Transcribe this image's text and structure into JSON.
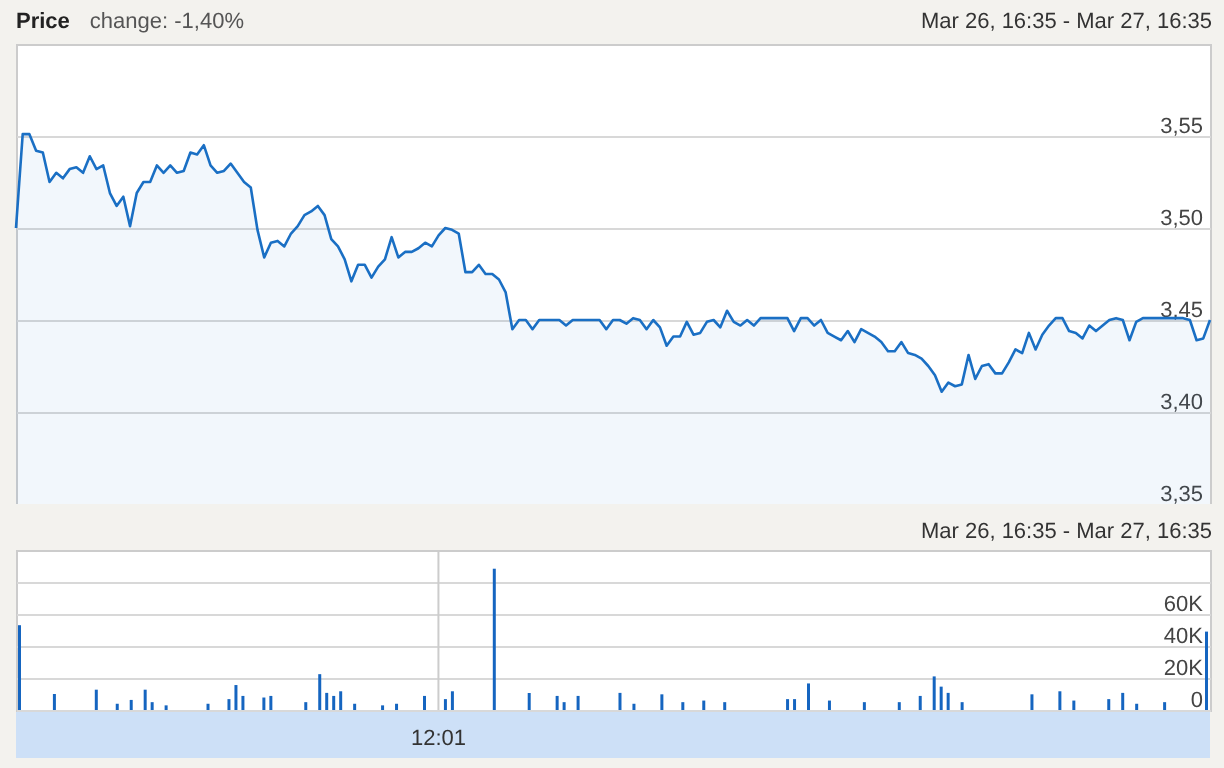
{
  "chart_data": [
    {
      "type": "area",
      "title": "Price",
      "annotations": [
        "change: -1,40%",
        "Mar 26, 16:35 - Mar 27, 16:35"
      ],
      "color": "#1a6fc4",
      "categories": [
        null,
        null,
        null,
        null,
        null,
        null,
        null,
        null,
        null,
        null,
        null,
        null,
        null,
        null,
        null,
        null,
        null,
        null,
        null,
        null,
        null,
        null,
        null,
        null,
        null,
        null,
        null,
        null,
        null,
        null,
        null,
        null,
        null,
        null,
        null,
        null,
        null,
        null,
        null,
        null,
        null,
        null,
        null,
        null,
        null,
        null,
        null,
        null,
        null,
        null,
        null,
        null,
        null,
        null,
        null,
        null,
        null,
        null,
        null,
        null,
        null,
        null,
        null,
        null,
        null,
        null,
        null,
        null,
        null,
        null,
        null,
        null,
        null,
        null,
        null,
        null,
        null,
        null,
        null,
        null,
        null,
        null,
        null,
        null,
        null,
        null,
        null,
        null,
        null,
        null,
        null,
        null,
        null,
        null,
        null,
        null,
        null,
        null,
        null,
        null,
        null,
        null,
        null,
        null,
        null,
        null,
        null,
        null,
        null,
        null,
        null,
        null,
        null,
        null,
        null,
        null,
        null,
        null,
        null,
        null,
        null,
        null,
        null,
        null,
        null,
        null,
        null,
        null,
        null,
        null,
        null,
        null,
        null,
        null,
        null,
        null,
        null,
        null,
        null,
        null,
        null,
        null,
        null,
        null,
        null,
        null,
        null,
        null,
        null,
        null,
        null,
        null,
        null,
        null,
        null,
        null,
        null,
        null,
        null,
        null,
        null,
        null,
        null,
        null,
        null,
        null,
        null,
        null,
        null,
        null,
        null,
        null,
        null,
        null,
        null,
        null,
        null,
        null,
        null
      ],
      "values": [
        3.5,
        3.551,
        3.551,
        3.542,
        3.541,
        3.525,
        3.53,
        3.527,
        3.532,
        3.533,
        3.53,
        3.539,
        3.532,
        3.534,
        3.519,
        3.512,
        3.517,
        3.501,
        3.519,
        3.525,
        3.525,
        3.534,
        3.53,
        3.534,
        3.53,
        3.531,
        3.541,
        3.54,
        3.545,
        3.534,
        3.53,
        3.531,
        3.535,
        3.53,
        3.525,
        3.522,
        3.499,
        3.484,
        3.492,
        3.493,
        3.49,
        3.497,
        3.501,
        3.507,
        3.509,
        3.512,
        3.507,
        3.494,
        3.49,
        3.483,
        3.471,
        3.48,
        3.48,
        3.473,
        3.479,
        3.483,
        3.495,
        3.484,
        3.487,
        3.487,
        3.489,
        3.492,
        3.49,
        3.496,
        3.5,
        3.499,
        3.497,
        3.476,
        3.476,
        3.48,
        3.475,
        3.475,
        3.472,
        3.465,
        3.445,
        3.45,
        3.45,
        3.445,
        3.45,
        3.45,
        3.45,
        3.45,
        3.447,
        3.45,
        3.45,
        3.45,
        3.45,
        3.45,
        3.445,
        3.45,
        3.45,
        3.448,
        3.451,
        3.45,
        3.445,
        3.45,
        3.446,
        3.436,
        3.441,
        3.441,
        3.449,
        3.442,
        3.443,
        3.449,
        3.45,
        3.446,
        3.455,
        3.449,
        3.447,
        3.45,
        3.447,
        3.451,
        3.451,
        3.451,
        3.451,
        3.451,
        3.444,
        3.451,
        3.451,
        3.447,
        3.45,
        3.443,
        3.441,
        3.439,
        3.444,
        3.438,
        3.445,
        3.443,
        3.441,
        3.438,
        3.433,
        3.433,
        3.438,
        3.432,
        3.431,
        3.429,
        3.425,
        3.42,
        3.411,
        3.416,
        3.414,
        3.415,
        3.431,
        3.418,
        3.425,
        3.426,
        3.421,
        3.421,
        3.427,
        3.434,
        3.432,
        3.443,
        3.434,
        3.442,
        3.447,
        3.451,
        3.451,
        3.444,
        3.443,
        3.44,
        3.447,
        3.444,
        3.447,
        3.45,
        3.451,
        3.45,
        3.439,
        3.449,
        3.451,
        3.451,
        3.451,
        3.451,
        3.451,
        3.451,
        3.451,
        3.45,
        3.439,
        3.44,
        3.45
      ],
      "ylim": [
        3.35,
        3.6
      ],
      "yticks": [
        {
          "value": 3.35,
          "label": "3,35"
        },
        {
          "value": 3.4,
          "label": "3,40"
        },
        {
          "value": 3.45,
          "label": "3,45"
        },
        {
          "value": 3.5,
          "label": "3,50"
        },
        {
          "value": 3.55,
          "label": "3,55"
        }
      ],
      "grid": "y",
      "tick_labels": "y"
    },
    {
      "type": "bar",
      "annotations": [
        "Mar 26, 16:35 - Mar 27, 16:35"
      ],
      "color": "#1565c0",
      "categories": [
        null,
        null,
        null,
        null,
        null,
        null,
        null,
        null,
        null,
        null,
        null,
        null,
        null,
        null,
        null,
        null,
        null,
        null,
        null,
        null,
        null,
        null,
        null,
        null,
        null,
        null,
        null,
        null,
        null,
        null,
        null,
        null,
        null,
        null,
        null,
        null,
        null,
        null,
        null,
        null,
        null,
        null,
        null,
        null,
        null,
        null,
        null,
        null,
        null,
        null,
        null,
        null,
        null,
        null,
        null,
        null,
        null,
        null,
        null,
        null,
        "12:01",
        null,
        null,
        null,
        null,
        null,
        null,
        null,
        null,
        null,
        null,
        null,
        null,
        null,
        null,
        null,
        null,
        null,
        null,
        null,
        null,
        null,
        null,
        null,
        null,
        null,
        null,
        null,
        null,
        null,
        null,
        null,
        null,
        null,
        null,
        null,
        null,
        null,
        null,
        null,
        null,
        null,
        null,
        null,
        null,
        null,
        null,
        null,
        null,
        null,
        null,
        null,
        null,
        null,
        null,
        null,
        null,
        null,
        null,
        null,
        null,
        null,
        null,
        null,
        null,
        null,
        null,
        null,
        null,
        null,
        null,
        null,
        null,
        null,
        null,
        null,
        null,
        null,
        null,
        null,
        null,
        null,
        null,
        null,
        null,
        null,
        null,
        null,
        null,
        null,
        null,
        null,
        null,
        null,
        null,
        null,
        null,
        null,
        null,
        null,
        null,
        null,
        null,
        null,
        null,
        null,
        null,
        null,
        null,
        null,
        null
      ],
      "values": [
        53000,
        null,
        null,
        null,
        null,
        10000,
        null,
        null,
        null,
        null,
        null,
        12700,
        null,
        null,
        3900,
        null,
        6300,
        null,
        12700,
        4900,
        null,
        2900,
        null,
        null,
        null,
        null,
        null,
        3900,
        null,
        null,
        6800,
        15600,
        8800,
        null,
        null,
        7800,
        8800,
        null,
        null,
        null,
        null,
        4900,
        null,
        22400,
        10700,
        8800,
        11700,
        null,
        3900,
        null,
        null,
        null,
        2900,
        null,
        3900,
        null,
        null,
        null,
        8800,
        null,
        null,
        6800,
        11700,
        null,
        null,
        null,
        null,
        null,
        88300,
        null,
        null,
        null,
        null,
        10700,
        null,
        null,
        null,
        8800,
        4900,
        null,
        8800,
        null,
        null,
        null,
        null,
        null,
        10700,
        null,
        3900,
        null,
        null,
        null,
        9800,
        null,
        null,
        4900,
        null,
        null,
        5900,
        null,
        null,
        4900,
        null,
        null,
        null,
        null,
        null,
        null,
        null,
        null,
        6800,
        6800,
        null,
        16600,
        null,
        null,
        5900,
        null,
        null,
        null,
        null,
        4900,
        null,
        null,
        null,
        null,
        4900,
        null,
        null,
        8800,
        null,
        21000,
        14600,
        10700,
        null,
        4900,
        null,
        null,
        null,
        null,
        null,
        null,
        null,
        null,
        null,
        9800,
        null,
        null,
        null,
        11700,
        null,
        5900,
        null,
        null,
        null,
        null,
        6800,
        null,
        10700,
        null,
        3900,
        null,
        null,
        null,
        4900,
        null,
        null,
        null,
        null,
        null,
        49000
      ],
      "ylim": [
        0,
        100000
      ],
      "yticks": [
        {
          "value": 0,
          "label": "0"
        },
        {
          "value": 20000,
          "label": "20K"
        },
        {
          "value": 40000,
          "label": "40K"
        },
        {
          "value": 60000,
          "label": "60K"
        },
        {
          "value": 80000,
          "label": null
        }
      ],
      "grid": "y",
      "ref_lines": [
        {
          "axis": "x",
          "value": "12:01",
          "color": "#cccccc"
        }
      ]
    }
  ]
}
